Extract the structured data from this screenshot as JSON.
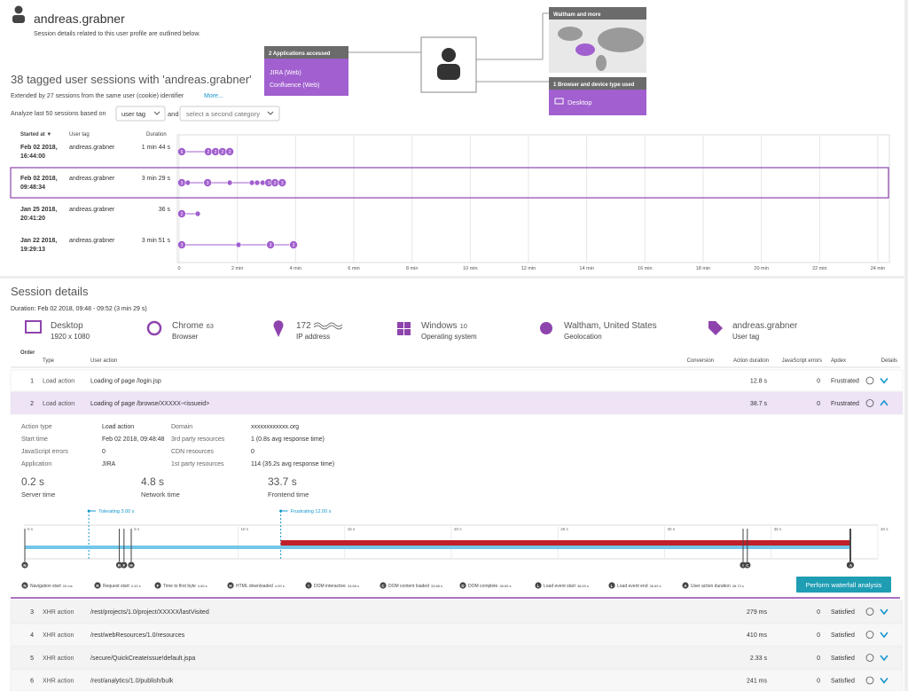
{
  "header": {
    "user": "andreas.grabner",
    "subtitle": "Session details related to this user profile are outlined below."
  },
  "overview": {
    "apps_title": "2 Applications accessed",
    "apps": [
      "JIRA (Web)",
      "Confluence (Web)"
    ],
    "geo_title": "Waltham and more",
    "devices_title": "1 Browser and device type used",
    "devices": [
      "Desktop"
    ]
  },
  "sessions": {
    "title": "38 tagged user sessions with 'andreas.grabner'",
    "extended": "Extended by 27 sessions from the same user (cookie) identifier",
    "more": "More...",
    "analyze": "Analyze last 50 sessions based on",
    "category": "user tag",
    "and": "and",
    "second_category": "select a second category",
    "columns": [
      "Started at ▼",
      "User tag",
      "Duration"
    ],
    "rows": [
      {
        "date": "Feb 02 2018,",
        "time": "16:44:00",
        "tag": "andreas.grabner",
        "duration": "1 min 44 s",
        "actions": [
          0.09,
          1.0,
          1.25,
          1.49,
          1.74
        ],
        "action_labels": [
          "6",
          "2",
          "2",
          "2",
          "2"
        ]
      },
      {
        "date": "Feb 02 2018,",
        "time": "09:48:34",
        "tag": "andreas.grabner",
        "duration": "3 min 29 s",
        "actions": [
          0.09,
          0.3,
          0.98,
          1.74,
          2.5,
          2.68,
          2.87,
          3.08,
          3.29,
          3.54
        ],
        "action_labels": [
          "3",
          null,
          "3",
          null,
          null,
          null,
          null,
          "3",
          "3",
          "3"
        ]
      },
      {
        "date": "Jan 25 2018,",
        "time": "20:41:20",
        "tag": "andreas.grabner",
        "duration": "36 s",
        "actions": [
          0.09,
          0.64
        ],
        "action_labels": [
          "2",
          null
        ]
      },
      {
        "date": "Jan 22 2018,",
        "time": "19:29:13",
        "tag": "andreas.grabner",
        "duration": "3 min 51 s",
        "actions": [
          0.09,
          2.04,
          3.14,
          3.93
        ],
        "action_labels": [
          "3",
          null,
          "3",
          "3"
        ]
      }
    ],
    "xlim": [
      0,
      24
    ],
    "xticks": [
      0,
      {
        "value": 2,
        "label": "2 min"
      },
      {
        "value": 4,
        "label": "4 min"
      },
      {
        "value": 6,
        "label": "6 min"
      },
      {
        "value": 8,
        "label": "8 min"
      },
      {
        "value": 10,
        "label": "10 min"
      },
      {
        "value": 12,
        "label": "12 min"
      },
      {
        "value": 14,
        "label": "14 min"
      },
      {
        "value": 16,
        "label": "16 min"
      },
      {
        "value": 18,
        "label": "18 min"
      },
      {
        "value": 20,
        "label": "20 min"
      },
      {
        "value": 22,
        "label": "22 min"
      },
      {
        "value": 24,
        "label": "24 min"
      }
    ]
  },
  "details": {
    "title": "Session details",
    "duration": "Duration: Feb 02 2018, 09:48 - 09:52 (3 min 29 s)",
    "info": [
      {
        "primary": "Desktop",
        "secondary": "1920 x 1080"
      },
      {
        "primary": "Chrome",
        "version": "63",
        "secondary": "Browser"
      },
      {
        "primary": "172",
        "secondary": "IP address"
      },
      {
        "primary": "Windows",
        "version": "10",
        "secondary": "Operating system"
      },
      {
        "primary": "Waltham, United States",
        "secondary": "Geolocation"
      },
      {
        "primary": "andreas.grabner",
        "secondary": "User tag"
      }
    ],
    "columns": [
      "Order",
      "Type",
      "User action",
      "Conversion",
      "Action duration",
      "JavaScript errors",
      "Apdex",
      "Details"
    ],
    "actions": [
      {
        "order": 1,
        "type": "Load action",
        "action": "Loading of page /login.jsp",
        "duration": "12.8 s",
        "errors": 0,
        "apdex": "Frustrated"
      },
      {
        "order": 2,
        "type": "Load action",
        "action": "Loading of page /browse/XXXXX-<issueid>",
        "duration": "38.7 s",
        "errors": 0,
        "apdex": "Frustrated"
      },
      {
        "order": 3,
        "type": "XHR action",
        "action": "/rest/projects/1.0/project/XXXXX/lastVisited",
        "duration": "279 ms",
        "errors": 0,
        "apdex": "Satisfied"
      },
      {
        "order": 4,
        "type": "XHR action",
        "action": "/rest/webResources/1.0/resources",
        "duration": "410 ms",
        "errors": 0,
        "apdex": "Satisfied"
      },
      {
        "order": 5,
        "type": "XHR action",
        "action": "/secure/QuickCreateIssue!default.jspa",
        "duration": "2.33 s",
        "errors": 0,
        "apdex": "Satisfied"
      },
      {
        "order": 6,
        "type": "XHR action",
        "action": "/rest/analytics/1.0/publish/bulk",
        "duration": "241 ms",
        "errors": 0,
        "apdex": "Satisfied"
      }
    ],
    "expanded": {
      "fields_left": [
        {
          "label": "Action type",
          "value": "Load action"
        },
        {
          "label": "Start time",
          "value": "Feb 02 2018, 09:48:48"
        },
        {
          "label": "JavaScript errors",
          "value": "0"
        },
        {
          "label": "Application",
          "value": "JIRA"
        }
      ],
      "fields_right": [
        {
          "label": "Domain",
          "value": "xxxxxxxxxxxx.org"
        },
        {
          "label": "3rd party resources",
          "value": "1 (0.8s avg response time)"
        },
        {
          "label": "CDN resources",
          "value": "0"
        },
        {
          "label": "1st party resources",
          "value": "114 (35.2s avg response time)"
        }
      ],
      "metrics": [
        {
          "value": "0.2 s",
          "label": "Server time"
        },
        {
          "value": "4.8 s",
          "label": "Network time"
        },
        {
          "value": "33.7 s",
          "label": "Frontend time"
        }
      ],
      "waterfall": {
        "xlim": [
          0,
          40
        ],
        "xticks": [
          {
            "value": 0,
            "label": "0 s"
          },
          {
            "value": 5,
            "label": "5 s"
          },
          {
            "value": 10,
            "label": "10 s"
          },
          {
            "value": 15,
            "label": "15 s"
          },
          {
            "value": 20,
            "label": "20 s"
          },
          {
            "value": 25,
            "label": "25 s"
          },
          {
            "value": 30,
            "label": "30 s"
          },
          {
            "value": 35,
            "label": "35 s"
          },
          {
            "value": 40,
            "label": "40 s"
          }
        ],
        "tolerating": {
          "value": 3,
          "label": "Tolerating 3.00 s"
        },
        "frustrating": {
          "value": 12,
          "label": "Frustrating 12.00 s"
        },
        "duration": 38.73,
        "markers": [
          {
            "letter": "N",
            "name": "Navigation start",
            "value": 0,
            "label": "00 ms"
          },
          {
            "letter": "R",
            "name": "Request start",
            "value": 4.43,
            "label": "4.43 s"
          },
          {
            "letter": "F",
            "name": "Time to first byte",
            "value": 4.65,
            "label": "4.65 s"
          },
          {
            "letter": "H",
            "name": "HTML downloaded",
            "value": 4.99,
            "label": "4.99 s"
          },
          {
            "letter": "I",
            "name": "DOM interactive",
            "value": 33.68,
            "label": "33.68 s"
          },
          {
            "letter": "C",
            "name": "DOM content loaded",
            "value": 33.88,
            "label": "33.88 s"
          },
          {
            "letter": "D",
            "name": "DOM complete",
            "value": 38.69,
            "label": "38.69 s"
          },
          {
            "letter": "L",
            "name": "Load event start",
            "value": 38.69,
            "label": "38.69 s"
          },
          {
            "letter": "L",
            "name": "Load event end",
            "value": 38.69,
            "label": "38.69 s"
          },
          {
            "letter": "A",
            "name": "User action duration",
            "value": 38.73,
            "label": "38.73 s"
          }
        ],
        "button": "Perform waterfall analysis"
      }
    }
  }
}
